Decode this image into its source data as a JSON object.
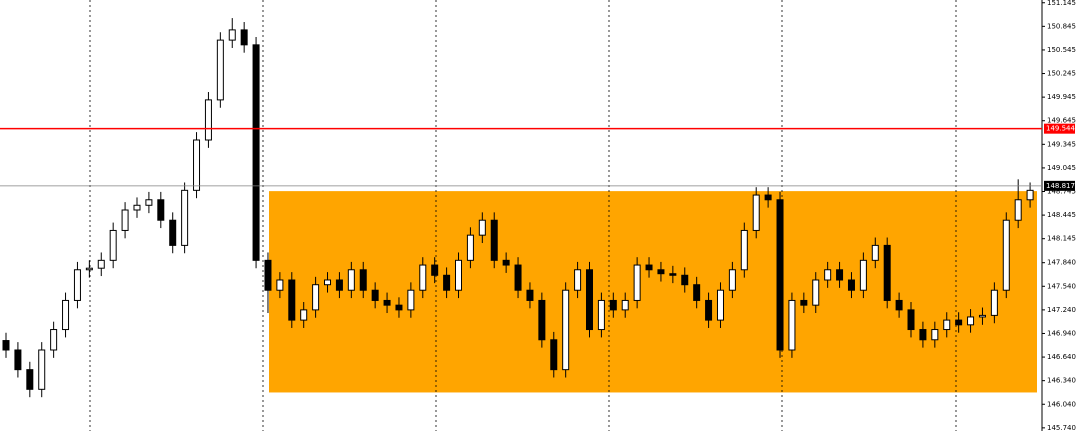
{
  "chart_data": {
    "type": "candlestick",
    "open": [
      146.85,
      146.73,
      146.48,
      146.23,
      146.73,
      146.99,
      147.36,
      147.75,
      147.77,
      147.87,
      148.25,
      148.51,
      148.57,
      148.64,
      148.38,
      148.06,
      148.76,
      149.4,
      149.91,
      150.67,
      150.8,
      150.61,
      147.87,
      147.49,
      147.62,
      147.11,
      147.24,
      147.56,
      147.62,
      147.49,
      147.75,
      147.49,
      147.36,
      147.3,
      147.24,
      147.49,
      147.81,
      147.68,
      147.49,
      147.87,
      148.19,
      148.38,
      147.87,
      147.81,
      147.49,
      147.36,
      146.86,
      146.48,
      147.49,
      147.75,
      146.99,
      147.36,
      147.24,
      147.36,
      147.81,
      147.75,
      147.7,
      147.68,
      147.56,
      147.36,
      147.11,
      147.49,
      147.75,
      148.25,
      148.7,
      148.64,
      146.73,
      147.36,
      147.3,
      147.62,
      147.75,
      147.62,
      147.49,
      147.87,
      148.06,
      147.36,
      147.24,
      146.99,
      146.86,
      146.99,
      147.11,
      147.05,
      147.15,
      147.17,
      147.49,
      148.38,
      148.64
    ],
    "high": [
      146.95,
      146.83,
      146.58,
      146.83,
      147.09,
      147.46,
      147.85,
      147.87,
      147.97,
      148.35,
      148.61,
      148.67,
      148.74,
      148.74,
      148.48,
      148.86,
      149.5,
      150.01,
      150.77,
      150.95,
      150.9,
      150.71,
      147.97,
      147.72,
      147.72,
      147.34,
      147.66,
      147.72,
      147.72,
      147.85,
      147.85,
      147.59,
      147.46,
      147.4,
      147.59,
      147.91,
      147.91,
      147.78,
      147.97,
      148.29,
      148.48,
      148.48,
      147.97,
      147.91,
      147.59,
      147.46,
      146.96,
      147.59,
      147.85,
      147.85,
      147.46,
      147.46,
      147.46,
      147.91,
      147.91,
      147.85,
      147.8,
      147.78,
      147.66,
      147.46,
      147.59,
      147.85,
      148.35,
      148.8,
      148.8,
      148.74,
      147.46,
      147.46,
      147.72,
      147.85,
      147.85,
      147.72,
      147.97,
      148.16,
      148.16,
      147.46,
      147.34,
      147.09,
      147.09,
      147.21,
      147.21,
      147.25,
      147.27,
      147.59,
      148.48,
      148.9,
      148.86
    ],
    "low": [
      146.63,
      146.38,
      146.13,
      146.13,
      146.63,
      146.89,
      147.26,
      147.65,
      147.67,
      147.77,
      148.15,
      148.41,
      148.47,
      148.28,
      147.96,
      147.96,
      148.66,
      149.3,
      149.81,
      150.57,
      150.51,
      147.77,
      147.2,
      147.39,
      147.01,
      147.01,
      147.14,
      147.46,
      147.39,
      147.39,
      147.39,
      147.26,
      147.2,
      147.14,
      147.14,
      147.39,
      147.58,
      147.39,
      147.39,
      147.77,
      148.09,
      147.77,
      147.71,
      147.39,
      147.26,
      146.76,
      146.38,
      146.38,
      147.39,
      146.89,
      146.89,
      147.14,
      147.14,
      147.26,
      147.65,
      147.6,
      147.58,
      147.46,
      147.26,
      147.01,
      147.01,
      147.39,
      147.65,
      148.15,
      148.54,
      146.63,
      146.63,
      147.2,
      147.2,
      147.52,
      147.52,
      147.39,
      147.39,
      147.77,
      147.26,
      147.14,
      146.89,
      146.76,
      146.76,
      146.89,
      146.95,
      146.95,
      147.05,
      147.07,
      147.39,
      148.28,
      148.54
    ],
    "close": [
      146.73,
      146.48,
      146.23,
      146.73,
      146.99,
      147.36,
      147.75,
      147.77,
      147.87,
      148.25,
      148.51,
      148.57,
      148.64,
      148.38,
      148.06,
      148.76,
      149.4,
      149.91,
      150.67,
      150.8,
      150.61,
      147.87,
      147.49,
      147.62,
      147.11,
      147.24,
      147.56,
      147.62,
      147.49,
      147.75,
      147.49,
      147.36,
      147.3,
      147.24,
      147.49,
      147.81,
      147.68,
      147.49,
      147.87,
      148.19,
      148.38,
      147.87,
      147.81,
      147.49,
      147.36,
      146.86,
      146.48,
      147.49,
      147.75,
      146.99,
      147.36,
      147.24,
      147.36,
      147.81,
      147.75,
      147.7,
      147.68,
      147.56,
      147.36,
      147.11,
      147.49,
      147.75,
      148.25,
      148.7,
      148.64,
      146.73,
      147.36,
      147.3,
      147.62,
      147.75,
      147.62,
      147.49,
      147.87,
      148.06,
      147.36,
      147.24,
      146.99,
      146.86,
      146.99,
      147.11,
      147.05,
      147.15,
      147.17,
      147.49,
      148.38,
      148.64,
      148.76
    ],
    "ylim": [
      145.7,
      151.18
    ],
    "yticks": [
      151.145,
      150.845,
      150.545,
      150.245,
      149.945,
      149.645,
      149.345,
      149.045,
      148.745,
      148.445,
      148.145,
      {
        "value": 147.84,
        "label": "147.840"
      },
      {
        "value": 147.54,
        "label": "147.540"
      },
      {
        "value": 147.24,
        "label": "147.240"
      },
      {
        "value": 146.94,
        "label": "146.940"
      },
      {
        "value": 146.64,
        "label": "146.640"
      },
      {
        "value": 146.34,
        "label": "146.340"
      },
      {
        "value": 146.04,
        "label": "146.040"
      },
      {
        "value": 145.74,
        "label": "145.740"
      }
    ],
    "levels": [
      {
        "value": 149.544,
        "color": "#ff0000"
      },
      {
        "value": 148.817,
        "color": "#808080"
      }
    ],
    "zone": {
      "top": 148.75,
      "bottom": 146.19,
      "color": "#ffa500"
    }
  }
}
